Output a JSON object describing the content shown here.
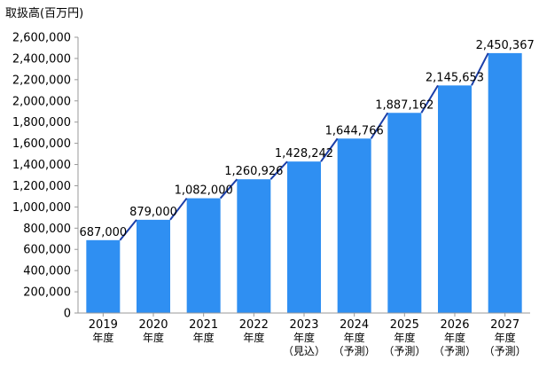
{
  "chart_data": {
    "type": "bar",
    "unit_label": "取扱高(百万円)",
    "categories": [
      [
        "2019",
        "年度"
      ],
      [
        "2020",
        "年度"
      ],
      [
        "2021",
        "年度"
      ],
      [
        "2022",
        "年度"
      ],
      [
        "2023",
        "年度",
        "（見込）"
      ],
      [
        "2024",
        "年度",
        "（予測）"
      ],
      [
        "2025",
        "年度",
        "（予測）"
      ],
      [
        "2026",
        "年度",
        "（予測）"
      ],
      [
        "2027",
        "年度",
        "（予測）"
      ]
    ],
    "values": [
      687000,
      879000,
      1082000,
      1260926,
      1428242,
      1644766,
      1887162,
      2145653,
      2450367
    ],
    "value_labels": [
      "687,000",
      "879,000",
      "1,082,000",
      "1,260,926",
      "1,428,242",
      "1,644,766",
      "1,887,162",
      "2,145,653",
      "2,450,367"
    ],
    "ylim": [
      0,
      2600000
    ],
    "yticks": [
      0,
      200000,
      400000,
      600000,
      800000,
      1000000,
      1200000,
      1400000,
      1600000,
      1800000,
      2000000,
      2200000,
      2400000,
      2600000
    ],
    "ytick_labels": [
      "0",
      "200,000",
      "400,000",
      "600,000",
      "800,000",
      "1,000,000",
      "1,200,000",
      "1,400,000",
      "1,600,000",
      "1,800,000",
      "2,000,000",
      "2,200,000",
      "2,400,000",
      "2,600,000"
    ],
    "bar_color": "#2f8ff2",
    "connector_color": "#1b3ea8",
    "grid": false
  }
}
